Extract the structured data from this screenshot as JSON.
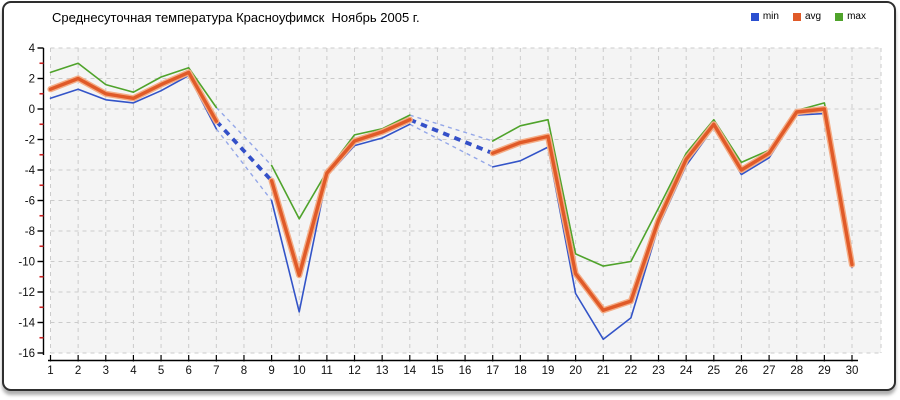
{
  "header": {
    "title": "Среднесуточная температура Красноуфимск  Ноябрь 2005 г."
  },
  "legend": {
    "position": "top-right",
    "items": [
      {
        "label": "min",
        "color": "#2b4fd0"
      },
      {
        "label": "avg",
        "color": "#e05a28"
      },
      {
        "label": "max",
        "color": "#4fa32b"
      }
    ]
  },
  "chart_data": {
    "type": "line",
    "title": "Среднесуточная температура Красноуфимск  Ноябрь 2005 г.",
    "xlabel": "",
    "ylabel": "",
    "x": [
      1,
      2,
      3,
      4,
      5,
      6,
      7,
      8,
      9,
      10,
      11,
      12,
      13,
      14,
      15,
      16,
      17,
      18,
      19,
      20,
      21,
      22,
      23,
      24,
      25,
      26,
      27,
      28,
      29,
      30
    ],
    "y_ticks": [
      4,
      2,
      0,
      -2,
      -4,
      -6,
      -8,
      -10,
      -12,
      -14,
      -16
    ],
    "ylim": [
      -16,
      4
    ],
    "xlim": [
      1,
      30
    ],
    "grid": "dashed",
    "legend_position": "top-right",
    "missing_days": [
      8,
      15,
      16
    ],
    "gap_bridges": [
      [
        7,
        9
      ],
      [
        14,
        17
      ]
    ],
    "series": [
      {
        "name": "min",
        "color": "#3354c8",
        "width": 1.6,
        "values": [
          0.7,
          1.3,
          0.6,
          0.4,
          1.2,
          2.2,
          -1.3,
          null,
          -6,
          -13.3,
          -4.4,
          -2.4,
          -1.9,
          -1,
          null,
          null,
          -3.8,
          -3.4,
          -2.5,
          -12.1,
          -15.1,
          -13.7,
          -7.7,
          -3.7,
          -1.2,
          -4.3,
          -3.2,
          -0.4,
          -0.3,
          -10.4
        ]
      },
      {
        "name": "avg",
        "color": "#e05a28",
        "halo": "#f4ac85",
        "width": 3.4,
        "values": [
          1.3,
          2,
          1,
          0.7,
          1.6,
          2.4,
          -0.8,
          null,
          -4.7,
          -10.9,
          -4.2,
          -2.1,
          -1.5,
          -0.7,
          null,
          null,
          -2.9,
          -2.2,
          -1.8,
          -10.8,
          -13.2,
          -12.6,
          -7.3,
          -3.3,
          -1,
          -4,
          -2.9,
          -0.2,
          0,
          -10.2
        ]
      },
      {
        "name": "max",
        "color": "#4fa32b",
        "width": 1.6,
        "values": [
          2.4,
          3,
          1.6,
          1.1,
          2.1,
          2.7,
          0.1,
          null,
          -3.7,
          -7.2,
          -4.1,
          -1.7,
          -1.3,
          -0.4,
          null,
          null,
          -2.1,
          -1.1,
          -0.7,
          -9.5,
          -10.3,
          -10,
          -6.5,
          -2.9,
          -0.7,
          -3.5,
          -2.7,
          -0.1,
          0.4,
          -10
        ]
      }
    ],
    "style": {
      "plot_bg": "#f4f4f4",
      "grid_color": "#cbcbcb",
      "axis_color": "#000000",
      "label_color": "#111111",
      "minor_tick_color": "#cc2222",
      "bridge_thick_color": "#3450c8",
      "bridge_thin_color": "#94a7e8"
    }
  }
}
